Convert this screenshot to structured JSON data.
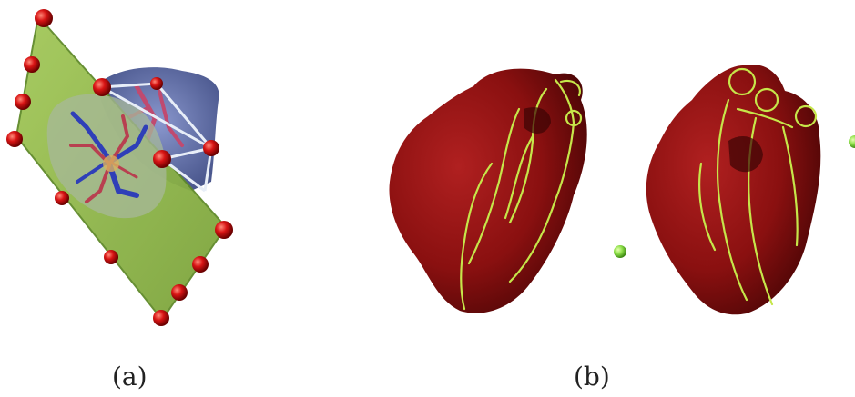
{
  "captions": {
    "a": "(a)",
    "b": "(b)"
  },
  "colors": {
    "plane": "#8fb64a",
    "plane_edge": "#5f8a2a",
    "control_point": "#d01010",
    "heart": "#8e1212",
    "heart_shadow": "#5a0808",
    "contour": "#c6e64a",
    "vessel_blue": "#2f3fb8",
    "vessel_red": "#b84050",
    "marker": "#8ee04a"
  },
  "icons": [
    "control-point-sphere",
    "green-marker-sphere"
  ]
}
